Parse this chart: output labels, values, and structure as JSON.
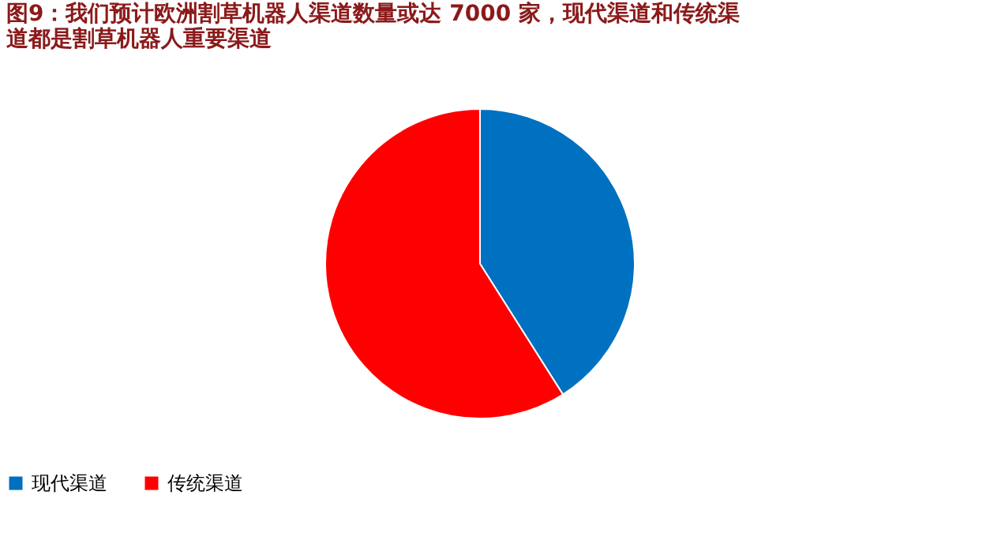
{
  "chart_data": {
    "type": "pie",
    "title": [
      "图9：我们预计欧洲割草机器人渠道数量或达 7000 家，现代渠道和传统渠",
      "道都是割草机器人重要渠道"
    ],
    "categories": [
      "现代渠道",
      "传统渠道"
    ],
    "values": [
      41,
      59
    ],
    "colors": [
      "#0070c0",
      "#ff0000"
    ],
    "legend": "bottom"
  }
}
